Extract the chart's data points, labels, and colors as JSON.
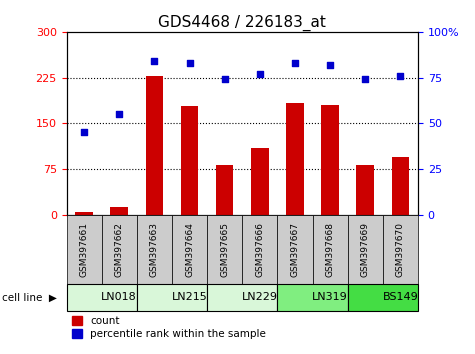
{
  "title": "GDS4468 / 226183_at",
  "samples": [
    "GSM397661",
    "GSM397662",
    "GSM397663",
    "GSM397664",
    "GSM397665",
    "GSM397666",
    "GSM397667",
    "GSM397668",
    "GSM397669",
    "GSM397670"
  ],
  "count_values": [
    5,
    12,
    228,
    178,
    82,
    110,
    183,
    180,
    82,
    95
  ],
  "percentile_values": [
    45,
    55,
    84,
    83,
    74,
    77,
    83,
    82,
    74,
    76
  ],
  "cell_lines": [
    {
      "name": "LN018",
      "start": 0,
      "end": 2,
      "color": "#d9f7d9"
    },
    {
      "name": "LN215",
      "start": 2,
      "end": 4,
      "color": "#d9f7d9"
    },
    {
      "name": "LN229",
      "start": 4,
      "end": 6,
      "color": "#d9f7d9"
    },
    {
      "name": "LN319",
      "start": 6,
      "end": 8,
      "color": "#80ee80"
    },
    {
      "name": "BS149",
      "start": 8,
      "end": 10,
      "color": "#44dd44"
    }
  ],
  "ylim_left": [
    0,
    300
  ],
  "ylim_right": [
    0,
    100
  ],
  "yticks_left": [
    0,
    75,
    150,
    225,
    300
  ],
  "yticks_right": [
    0,
    25,
    50,
    75,
    100
  ],
  "bar_color": "#cc0000",
  "dot_color": "#0000cc",
  "background_color": "#ffffff",
  "plot_bg_color": "#ffffff",
  "sample_box_color": "#cccccc",
  "title_fontsize": 11,
  "bar_width": 0.5,
  "grid_lines": [
    75,
    150,
    225
  ],
  "legend_items": [
    {
      "color": "#cc0000",
      "label": "count"
    },
    {
      "color": "#0000cc",
      "label": "percentile rank within the sample"
    }
  ]
}
